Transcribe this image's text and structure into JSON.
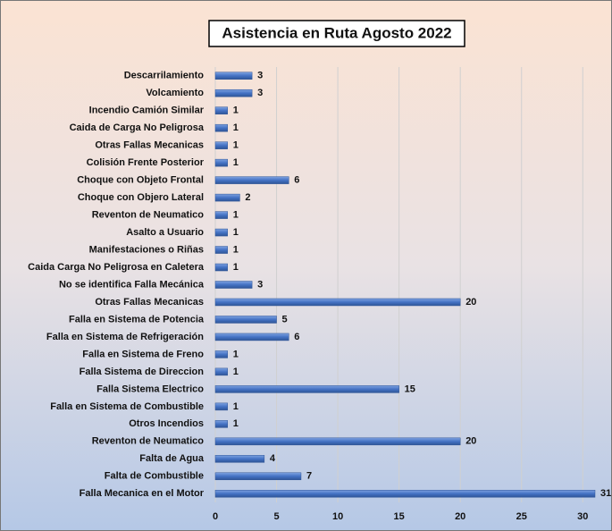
{
  "chart_data": {
    "type": "bar",
    "orientation": "horizontal",
    "title": "Asistencia en Ruta Agosto 2022",
    "categories": [
      "Descarrilamiento",
      "Volcamiento",
      "Incendio Camión Similar",
      "Caida de Carga No Peligrosa",
      "Otras Fallas Mecanicas",
      "Colisión Frente Posterior",
      "Choque con Objeto Frontal",
      "Choque con Objero Lateral",
      "Reventon de Neumatico",
      "Asalto a Usuario",
      "Manifestaciones o Riñas",
      "Caida Carga No Peligrosa en Caletera",
      "No se identifica Falla Mecánica",
      "Otras Fallas Mecanicas",
      "Falla en Sistema de Potencia",
      "Falla en Sistema de Refrigeración",
      "Falla en Sistema de Freno",
      "Falla Sistema de Direccion",
      "Falla Sistema Electrico",
      "Falla en Sistema de Combustible",
      "Otros Incendios",
      "Reventon de Neumatico",
      "Falta de Agua",
      "Falta de Combustible",
      "Falla Mecanica en el Motor"
    ],
    "values": [
      3,
      3,
      1,
      1,
      1,
      1,
      6,
      2,
      1,
      1,
      1,
      1,
      3,
      20,
      5,
      6,
      1,
      1,
      15,
      1,
      1,
      20,
      4,
      7,
      31
    ],
    "color": "#4472c4",
    "xlim": [
      0,
      31
    ],
    "xticks": [
      0,
      5,
      10,
      15,
      20,
      25,
      30
    ],
    "grid": true
  }
}
